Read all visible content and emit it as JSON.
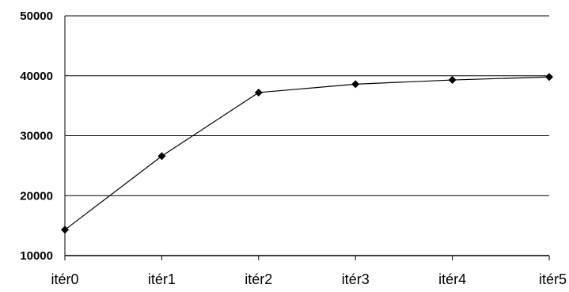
{
  "chart_data": {
    "type": "line",
    "title": "",
    "xlabel": "",
    "ylabel": "",
    "categories": [
      "itér0",
      "itér1",
      "itér2",
      "itér3",
      "itér4",
      "itér5"
    ],
    "series": [
      {
        "values": [
          14300,
          26600,
          37200,
          38600,
          39300,
          39800
        ]
      }
    ],
    "ylim": [
      10000,
      50000
    ],
    "yticks": [
      "10000",
      "20000",
      "30000",
      "40000",
      "50000"
    ],
    "grid": "horizontal",
    "marker": "diamond",
    "legend": "none",
    "colors": {
      "line": "#000000",
      "grid": "#000000",
      "background": "#ffffff"
    }
  }
}
